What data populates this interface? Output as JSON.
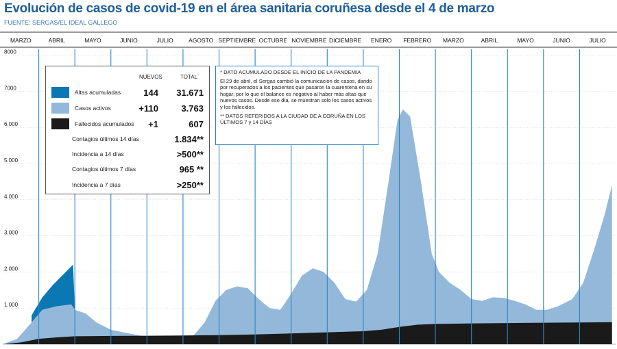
{
  "title": "Evolución de casos de covid-19 en el área sanitaria coruñesa desde el 4 de marzo",
  "source": "FUENTE: SERGAS/EL IDEAL GALLEGO",
  "colors": {
    "altas": "#0b78b4",
    "activos": "#93b8d9",
    "fallecidos": "#1a1a1a",
    "month_lines": "#2a86c4",
    "title": "#1f5f9a"
  },
  "legend": {
    "header_new": "NUEVOS",
    "header_total": "TOTAL",
    "rows": [
      {
        "label": "Altas acumuladas",
        "new": "144",
        "total": "31.671",
        "swatch": "altas"
      },
      {
        "label": "Casos activos",
        "new": "+110",
        "total": "3.763",
        "swatch": "activos"
      },
      {
        "label": "Fallecidos acumulados",
        "new": "+1",
        "total": "607",
        "swatch": "fallecidos"
      },
      {
        "label": "Contagios últimos 14 días",
        "new": "",
        "total": "1.834**",
        "swatch": ""
      },
      {
        "label": "Incidencia a 14 días",
        "new": "",
        "total": ">500**",
        "swatch": ""
      },
      {
        "label": "Contagios últimos 7 días",
        "new": "",
        "total": "965 **",
        "swatch": ""
      },
      {
        "label": "Incidencia a 7 días",
        "new": "",
        "total": ">250**",
        "swatch": ""
      }
    ]
  },
  "notes": {
    "n1": "* DATO ACUMULADO DESDE EL INICIO DE LA PANDEMIA",
    "n2": "El 29 de abril, el Sergas cambió la comunicación de casos, dando por recuperados a los pacientes que pasaron la cuarentena en su hogar, por lo que el balance es negativo al haber más altas que nuevos casos. Desde ese día, se muestran solo los casos activos y los fallecidos.",
    "n3": "** DATOS REFERIDOS A LA CIUDAD DE A CORUÑA EN LOS ÚLTIMOS 7 y 14 DÍAS"
  },
  "chart_data": {
    "type": "area",
    "months": [
      "MARZO",
      "ABRIL",
      "MAYO",
      "JUNIO",
      "JULIO",
      "AGOSTO",
      "SEPTIEMBRE",
      "OCTUBRE",
      "NOVIEMBRE",
      "DICIEMBRE",
      "ENERO",
      "FEBRERO",
      "MARZO",
      "ABRIL",
      "MAYO",
      "JUNIO",
      "JULIO"
    ],
    "y_ticks": [
      "8000",
      "7000",
      "6.000",
      "5.000",
      "4.000",
      "3.000",
      "2.000",
      "1.000"
    ],
    "ylim": [
      0,
      8200
    ],
    "grid": true,
    "series": [
      {
        "name": "Casos activos",
        "color_key": "activos",
        "points": [
          [
            0,
            0
          ],
          [
            0.4,
            150
          ],
          [
            0.8,
            600
          ],
          [
            1.1,
            950
          ],
          [
            1.5,
            1050
          ],
          [
            1.9,
            1100
          ],
          [
            2.0,
            950
          ],
          [
            2.3,
            850
          ],
          [
            2.6,
            600
          ],
          [
            3.0,
            400
          ],
          [
            3.5,
            300
          ],
          [
            4.0,
            200
          ],
          [
            4.5,
            150
          ],
          [
            5.0,
            180
          ],
          [
            5.3,
            250
          ],
          [
            5.6,
            600
          ],
          [
            5.9,
            1200
          ],
          [
            6.2,
            1500
          ],
          [
            6.5,
            1600
          ],
          [
            6.8,
            1550
          ],
          [
            7.1,
            1250
          ],
          [
            7.4,
            1000
          ],
          [
            7.7,
            950
          ],
          [
            8.0,
            1400
          ],
          [
            8.3,
            1900
          ],
          [
            8.6,
            2100
          ],
          [
            8.9,
            2000
          ],
          [
            9.2,
            1700
          ],
          [
            9.5,
            1250
          ],
          [
            9.8,
            1180
          ],
          [
            10.1,
            1500
          ],
          [
            10.4,
            2500
          ],
          [
            10.7,
            4500
          ],
          [
            10.95,
            6200
          ],
          [
            11.1,
            6500
          ],
          [
            11.3,
            6300
          ],
          [
            11.6,
            4500
          ],
          [
            11.9,
            2500
          ],
          [
            12.1,
            2000
          ],
          [
            12.4,
            1700
          ],
          [
            12.7,
            1500
          ],
          [
            13.0,
            1250
          ],
          [
            13.3,
            1200
          ],
          [
            13.6,
            1300
          ],
          [
            13.9,
            1280
          ],
          [
            14.2,
            1200
          ],
          [
            14.5,
            1100
          ],
          [
            14.8,
            950
          ],
          [
            15.1,
            950
          ],
          [
            15.4,
            1050
          ],
          [
            15.8,
            1250
          ],
          [
            16.1,
            1700
          ],
          [
            16.4,
            2600
          ],
          [
            16.7,
            3600
          ],
          [
            16.9,
            4400
          ]
        ]
      },
      {
        "name": "Fallecidos acumulados",
        "color_key": "fallecidos",
        "points": [
          [
            0,
            0
          ],
          [
            0.5,
            50
          ],
          [
            1.0,
            150
          ],
          [
            1.5,
            190
          ],
          [
            2.0,
            220
          ],
          [
            3.0,
            230
          ],
          [
            4.0,
            235
          ],
          [
            5.0,
            240
          ],
          [
            6.0,
            250
          ],
          [
            7.0,
            270
          ],
          [
            8.0,
            300
          ],
          [
            9.0,
            330
          ],
          [
            10.0,
            360
          ],
          [
            10.5,
            400
          ],
          [
            11.0,
            480
          ],
          [
            11.5,
            540
          ],
          [
            12.0,
            560
          ],
          [
            13.0,
            575
          ],
          [
            14.0,
            585
          ],
          [
            15.0,
            595
          ],
          [
            16.0,
            600
          ],
          [
            16.9,
            607
          ]
        ]
      },
      {
        "name": "Altas acumuladas",
        "color_key": "altas",
        "points": [
          [
            0.8,
            800
          ],
          [
            1.1,
            1300
          ],
          [
            1.4,
            1650
          ],
          [
            1.7,
            1950
          ],
          [
            1.95,
            2200
          ],
          [
            1.95,
            2250
          ]
        ]
      }
    ]
  }
}
